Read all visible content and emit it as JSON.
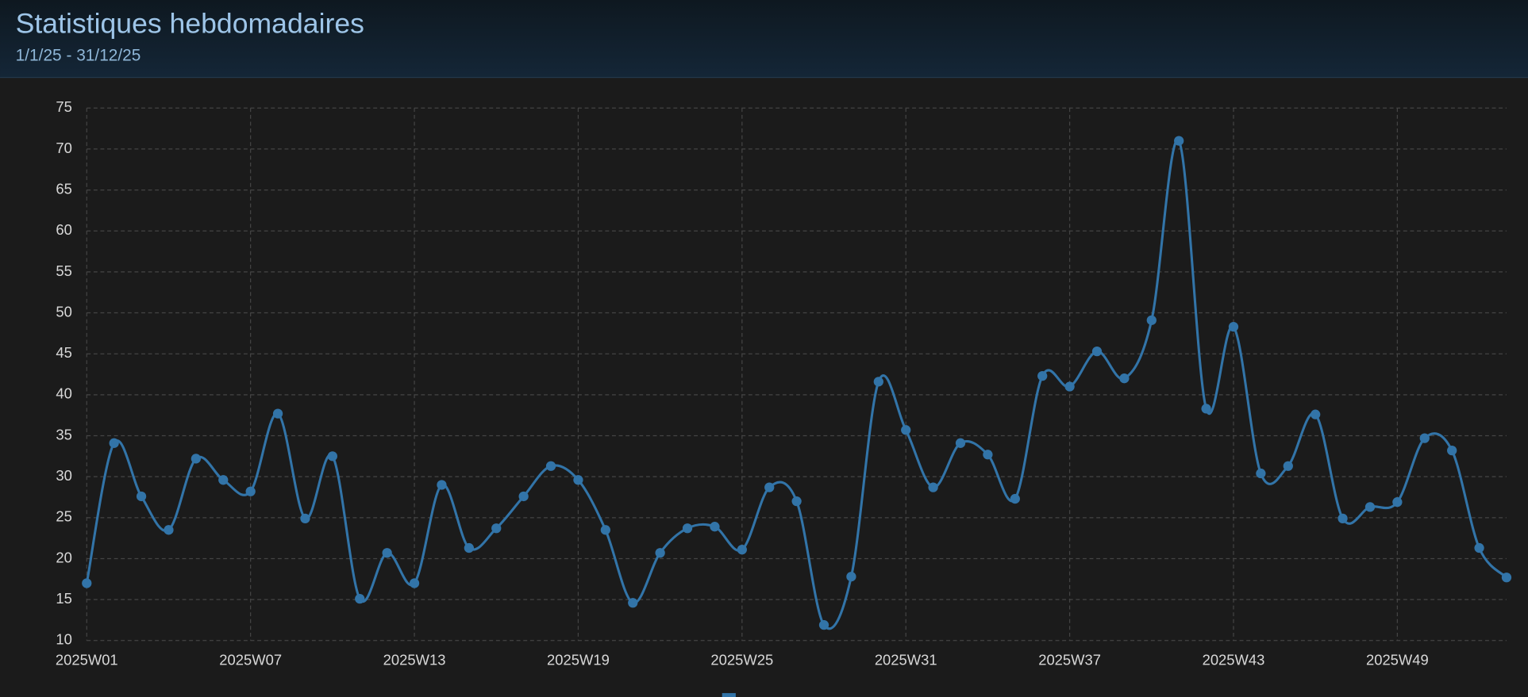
{
  "header": {
    "title": "Statistiques hebdomadaires",
    "subtitle": "1/1/25 - 31/12/25"
  },
  "chart_data": {
    "type": "line",
    "categories": [
      "2025W01",
      null,
      null,
      null,
      null,
      null,
      "2025W07",
      null,
      null,
      null,
      null,
      null,
      "2025W13",
      null,
      null,
      null,
      null,
      null,
      "2025W19",
      null,
      null,
      null,
      null,
      null,
      "2025W25",
      null,
      null,
      null,
      null,
      null,
      "2025W31",
      null,
      null,
      null,
      null,
      null,
      "2025W37",
      null,
      null,
      null,
      null,
      null,
      "2025W43",
      null,
      null,
      null,
      null,
      null,
      "2025W49",
      null,
      null,
      null,
      null
    ],
    "series": [
      {
        "color": "#3274a8",
        "values": [
          17.0,
          34.1,
          27.6,
          23.5,
          32.2,
          29.6,
          28.2,
          37.7,
          24.9,
          32.5,
          15.1,
          20.7,
          17.0,
          29.0,
          21.3,
          23.7,
          27.6,
          31.3,
          29.6,
          23.5,
          14.6,
          20.7,
          23.7,
          23.9,
          21.1,
          28.7,
          27.0,
          11.9,
          17.8,
          41.6,
          35.7,
          28.7,
          34.1,
          32.7,
          27.3,
          42.3,
          41.0,
          45.3,
          42.0,
          49.1,
          71.0,
          38.3,
          48.3,
          30.4,
          31.3,
          37.6,
          24.9,
          26.3,
          26.9,
          34.7,
          33.2,
          21.3,
          17.7
        ]
      }
    ],
    "ylim": [
      10,
      75
    ],
    "yticks": [
      10,
      15,
      20,
      25,
      30,
      35,
      40,
      45,
      50,
      55,
      60,
      65,
      70,
      75
    ],
    "grid": true
  }
}
